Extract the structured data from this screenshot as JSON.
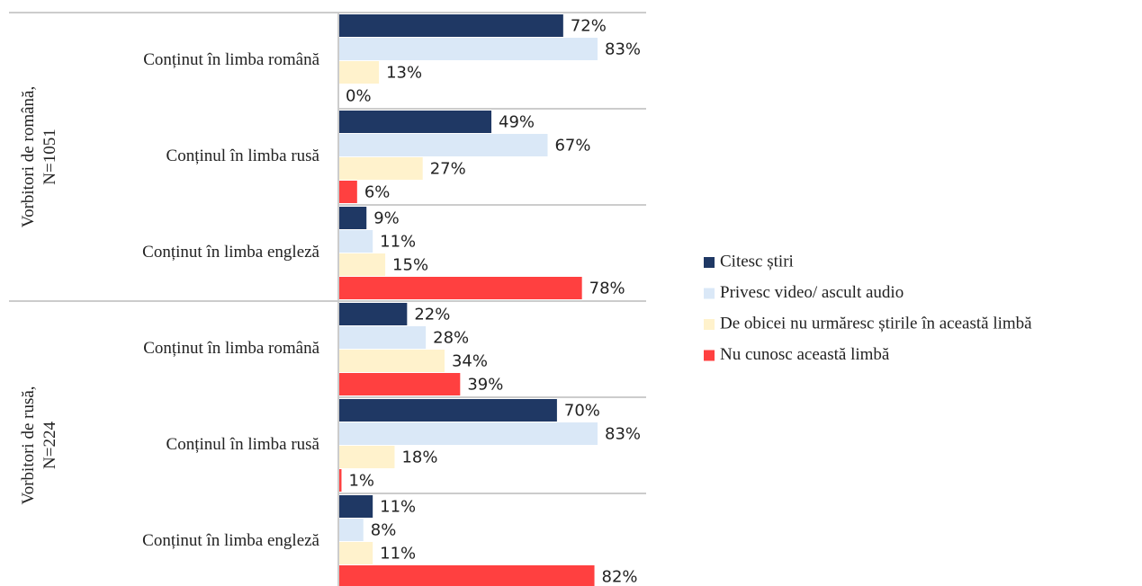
{
  "chart_data": {
    "type": "bar",
    "orientation": "horizontal",
    "groups": [
      [
        "Vorbitori de română,",
        "N=1051"
      ],
      [
        "Vorbitori de rusă,",
        "N=224"
      ]
    ],
    "categories": [
      "Conținut în limba română",
      "Conținul în limba rusă",
      "Conținut în limba engleză",
      "Conținut în limba română",
      "Conținul în limba rusă",
      "Conținut în limba engleză"
    ],
    "xlim": [
      0,
      100
    ],
    "series": [
      {
        "name": "Citesc știri",
        "color": "#1f3864",
        "values": [
          72,
          49,
          9,
          22,
          70,
          11
        ],
        "value_labels": [
          "72%",
          "49%",
          "9%",
          "22%",
          "70%",
          "11%"
        ]
      },
      {
        "name": "Privesc video/ ascult audio",
        "color": "#dae8f7",
        "values": [
          83,
          67,
          11,
          28,
          83,
          8
        ],
        "value_labels": [
          "83%",
          "67%",
          "11%",
          "28%",
          "83%",
          "8%"
        ]
      },
      {
        "name": "De obicei nu urmăresc știrile în această limbă",
        "color": "#fff2cc",
        "values": [
          13,
          27,
          15,
          34,
          18,
          11
        ],
        "value_labels": [
          "13%",
          "27%",
          "15%",
          "34%",
          "18%",
          "11%"
        ]
      },
      {
        "name": "Nu cunosc această limbă",
        "color": "#ff4040",
        "values": [
          0,
          6,
          78,
          39,
          1,
          82
        ],
        "value_labels": [
          "0%",
          "6%",
          "78%",
          "39%",
          "1%",
          "82%"
        ]
      }
    ]
  }
}
